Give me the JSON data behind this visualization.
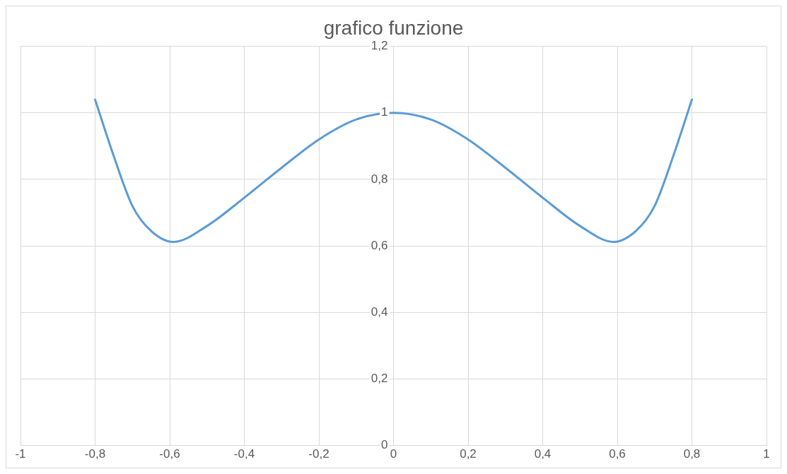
{
  "chart_data": {
    "type": "line",
    "title": "grafico funzione",
    "x": [
      -0.8,
      -0.75,
      -0.7,
      -0.65,
      -0.59,
      -0.5,
      -0.4,
      -0.3,
      -0.2,
      -0.1,
      0,
      0.1,
      0.2,
      0.3,
      0.4,
      0.5,
      0.59,
      0.65,
      0.7,
      0.75,
      0.8
    ],
    "series": [
      {
        "color": "#5b9bd5",
        "values": [
          1.04,
          0.87,
          0.72,
          0.645,
          0.612,
          0.66,
          0.745,
          0.835,
          0.92,
          0.98,
          1,
          0.98,
          0.92,
          0.835,
          0.745,
          0.66,
          0.612,
          0.645,
          0.72,
          0.87,
          1.04
        ]
      }
    ],
    "xlim": [
      -1,
      1
    ],
    "xticks": [
      -1,
      {
        "value": -0.8,
        "label": "-0,8"
      },
      {
        "value": -0.6,
        "label": "-0,6"
      },
      {
        "value": -0.4,
        "label": "-0,4"
      },
      {
        "value": -0.2,
        "label": "-0,2"
      },
      0,
      {
        "value": 0.2,
        "label": "0,2"
      },
      {
        "value": 0.4,
        "label": "0,4"
      },
      {
        "value": 0.6,
        "label": "0,6"
      },
      {
        "value": 0.8,
        "label": "0,8"
      },
      1
    ],
    "ylim": [
      0,
      1.2
    ],
    "yticks": [
      0,
      {
        "value": 0.2,
        "label": "0,2"
      },
      {
        "value": 0.4,
        "label": "0,4"
      },
      {
        "value": 0.6,
        "label": "0,6"
      },
      {
        "value": 0.8,
        "label": "0,8"
      },
      1,
      {
        "value": 1.2,
        "label": "1,2"
      }
    ],
    "grid": true,
    "legend": false,
    "marker": "none",
    "line_style": "solid"
  }
}
